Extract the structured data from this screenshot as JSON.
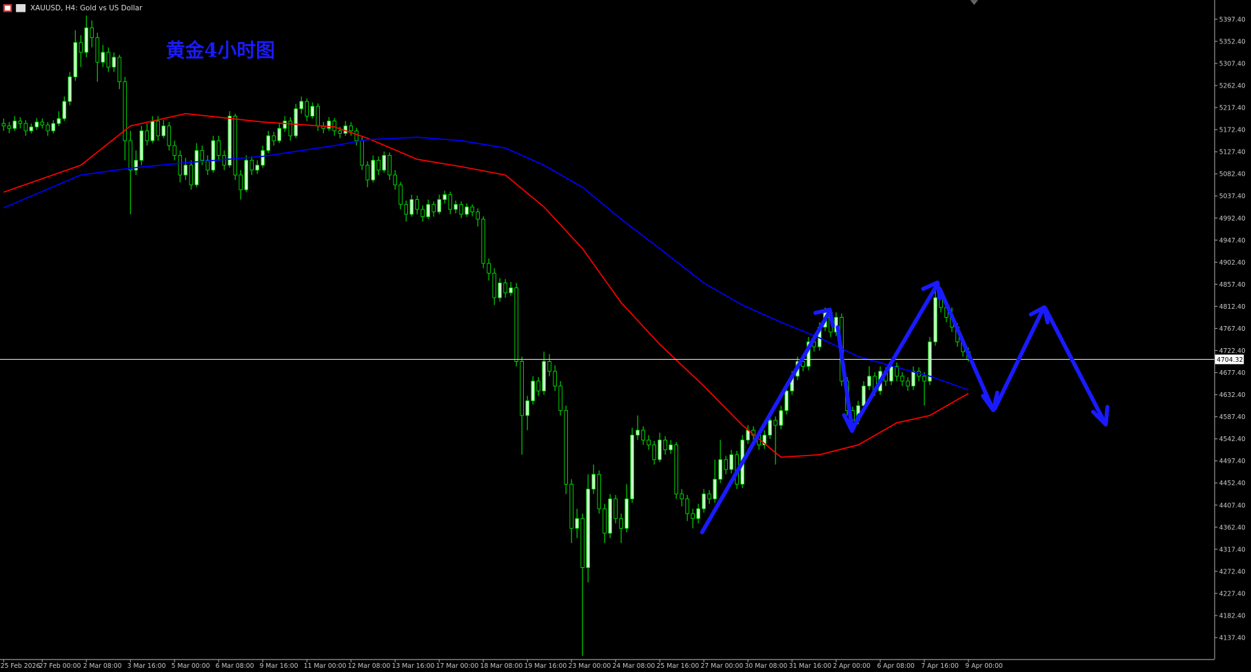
{
  "chart_data": {
    "type": "candlestick",
    "title": "XAUUSD, H4:  Gold vs US Dollar",
    "annotation": "黄金4小时图",
    "up_color": "#ccffcc",
    "down_color": "#000000",
    "wick_color": "#00e000",
    "ylim": [
      4093.5,
      5436.4
    ],
    "yticks": [
      {
        "value": 5397.4,
        "label": "5397.40"
      },
      {
        "value": 5352.4,
        "label": "5352.40"
      },
      {
        "value": 5307.4,
        "label": "5307.40"
      },
      {
        "value": 5262.4,
        "label": "5262.40"
      },
      {
        "value": 5217.4,
        "label": "5217.40"
      },
      {
        "value": 5172.4,
        "label": "5172.40"
      },
      {
        "value": 5127.4,
        "label": "5127.40"
      },
      {
        "value": 5082.4,
        "label": "5082.40"
      },
      {
        "value": 5037.4,
        "label": "5037.40"
      },
      {
        "value": 4992.4,
        "label": "4992.40"
      },
      {
        "value": 4947.4,
        "label": "4947.40"
      },
      {
        "value": 4902.4,
        "label": "4902.40"
      },
      {
        "value": 4857.4,
        "label": "4857.40"
      },
      {
        "value": 4812.4,
        "label": "4812.40"
      },
      {
        "value": 4767.4,
        "label": "4767.40"
      },
      {
        "value": 4722.4,
        "label": "4722.40"
      },
      {
        "value": 4677.4,
        "label": "4677.40"
      },
      {
        "value": 4632.4,
        "label": "4632.40"
      },
      {
        "value": 4587.4,
        "label": "4587.40"
      },
      {
        "value": 4542.4,
        "label": "4542.40"
      },
      {
        "value": 4497.4,
        "label": "4497.40"
      },
      {
        "value": 4452.4,
        "label": "4452.40"
      },
      {
        "value": 4407.4,
        "label": "4407.40"
      },
      {
        "value": 4362.4,
        "label": "4362.40"
      },
      {
        "value": 4317.4,
        "label": "4317.40"
      },
      {
        "value": 4272.4,
        "label": "4272.40"
      },
      {
        "value": 4227.4,
        "label": "4227.40"
      },
      {
        "value": 4182.4,
        "label": "4182.40"
      },
      {
        "value": 4137.4,
        "label": "4137.40"
      }
    ],
    "current_price": {
      "value": 4704.32,
      "label": "4704.32"
    },
    "categories": [
      "25 Feb 2026",
      null,
      null,
      null,
      null,
      null,
      null,
      "27 Feb 00:00",
      null,
      null,
      null,
      null,
      null,
      null,
      null,
      "2 Mar 08:00",
      null,
      null,
      null,
      null,
      null,
      null,
      null,
      "3 Mar 16:00",
      null,
      null,
      null,
      null,
      null,
      null,
      null,
      "5 Mar 00:00",
      null,
      null,
      null,
      null,
      null,
      null,
      null,
      "6 Mar 08:00",
      null,
      null,
      null,
      null,
      null,
      null,
      null,
      "9 Mar 16:00",
      null,
      null,
      null,
      null,
      null,
      null,
      null,
      "11 Mar 00:00",
      null,
      null,
      null,
      null,
      null,
      null,
      null,
      "12 Mar 08:00",
      null,
      null,
      null,
      null,
      null,
      null,
      null,
      "13 Mar 16:00",
      null,
      null,
      null,
      null,
      null,
      null,
      null,
      "17 Mar 00:00",
      null,
      null,
      null,
      null,
      null,
      null,
      null,
      "18 Mar 08:00",
      null,
      null,
      null,
      null,
      null,
      null,
      null,
      "19 Mar 16:00",
      null,
      null,
      null,
      null,
      null,
      null,
      null,
      "23 Mar 00:00",
      null,
      null,
      null,
      null,
      null,
      null,
      null,
      "24 Mar 08:00",
      null,
      null,
      null,
      null,
      null,
      null,
      null,
      "25 Mar 16:00",
      null,
      null,
      null,
      null,
      null,
      null,
      null,
      "27 Mar 00:00",
      null,
      null,
      null,
      null,
      null,
      null,
      null,
      "30 Mar 08:00",
      null,
      null,
      null,
      null,
      null,
      null,
      null,
      "31 Mar 16:00",
      null,
      null,
      null,
      null,
      null,
      null,
      null,
      "2 Apr 00:00",
      null,
      null,
      null,
      null,
      null,
      null,
      null,
      "6 Apr 08:00",
      null,
      null,
      null,
      null,
      null,
      null,
      null,
      "7 Apr 16:00",
      null,
      null,
      null,
      null,
      null,
      null,
      null,
      "9 Apr 00:00"
    ],
    "ohlc": [
      [
        5185,
        5195,
        5170,
        5180
      ],
      [
        5180,
        5188,
        5165,
        5175
      ],
      [
        5175,
        5200,
        5170,
        5190
      ],
      [
        5190,
        5198,
        5175,
        5185
      ],
      [
        5185,
        5192,
        5160,
        5170
      ],
      [
        5170,
        5185,
        5165,
        5178
      ],
      [
        5178,
        5196,
        5172,
        5188
      ],
      [
        5188,
        5195,
        5175,
        5182
      ],
      [
        5182,
        5188,
        5160,
        5170
      ],
      [
        5170,
        5192,
        5165,
        5185
      ],
      [
        5185,
        5210,
        5180,
        5195
      ],
      [
        5195,
        5240,
        5190,
        5230
      ],
      [
        5230,
        5290,
        5222,
        5280
      ],
      [
        5280,
        5375,
        5272,
        5350
      ],
      [
        5350,
        5365,
        5300,
        5330
      ],
      [
        5330,
        5405,
        5320,
        5380
      ],
      [
        5380,
        5395,
        5340,
        5360
      ],
      [
        5360,
        5370,
        5270,
        5310
      ],
      [
        5310,
        5345,
        5300,
        5330
      ],
      [
        5330,
        5340,
        5290,
        5300
      ],
      [
        5300,
        5330,
        5290,
        5320
      ],
      [
        5320,
        5325,
        5255,
        5270
      ],
      [
        5270,
        5280,
        5110,
        5150
      ],
      [
        5150,
        5170,
        5000,
        5090
      ],
      [
        5090,
        5130,
        5080,
        5110
      ],
      [
        5110,
        5180,
        5100,
        5170
      ],
      [
        5170,
        5185,
        5140,
        5150
      ],
      [
        5150,
        5200,
        5145,
        5190
      ],
      [
        5190,
        5200,
        5150,
        5160
      ],
      [
        5160,
        5192,
        5155,
        5180
      ],
      [
        5180,
        5188,
        5130,
        5140
      ],
      [
        5140,
        5150,
        5110,
        5120
      ],
      [
        5120,
        5130,
        5065,
        5080
      ],
      [
        5080,
        5115,
        5070,
        5100
      ],
      [
        5100,
        5110,
        5050,
        5060
      ],
      [
        5060,
        5145,
        5055,
        5130
      ],
      [
        5130,
        5140,
        5100,
        5110
      ],
      [
        5110,
        5120,
        5080,
        5090
      ],
      [
        5090,
        5160,
        5085,
        5150
      ],
      [
        5150,
        5160,
        5110,
        5120
      ],
      [
        5120,
        5130,
        5090,
        5100
      ],
      [
        5100,
        5210,
        5095,
        5200
      ],
      [
        5200,
        5205,
        5070,
        5080
      ],
      [
        5080,
        5090,
        5030,
        5050
      ],
      [
        5050,
        5120,
        5045,
        5110
      ],
      [
        5110,
        5118,
        5080,
        5090
      ],
      [
        5090,
        5110,
        5082,
        5100
      ],
      [
        5100,
        5140,
        5095,
        5130
      ],
      [
        5130,
        5170,
        5125,
        5160
      ],
      [
        5160,
        5168,
        5140,
        5150
      ],
      [
        5150,
        5185,
        5145,
        5175
      ],
      [
        5175,
        5200,
        5168,
        5190
      ],
      [
        5190,
        5198,
        5150,
        5160
      ],
      [
        5160,
        5225,
        5155,
        5215
      ],
      [
        5215,
        5240,
        5205,
        5230
      ],
      [
        5230,
        5236,
        5190,
        5200
      ],
      [
        5200,
        5228,
        5195,
        5220
      ],
      [
        5220,
        5226,
        5170,
        5180
      ],
      [
        5180,
        5188,
        5165,
        5175
      ],
      [
        5175,
        5198,
        5170,
        5190
      ],
      [
        5190,
        5196,
        5160,
        5170
      ],
      [
        5170,
        5178,
        5155,
        5165
      ],
      [
        5165,
        5190,
        5160,
        5180
      ],
      [
        5180,
        5188,
        5160,
        5170
      ],
      [
        5170,
        5176,
        5140,
        5150
      ],
      [
        5150,
        5158,
        5090,
        5100
      ],
      [
        5100,
        5108,
        5055,
        5070
      ],
      [
        5070,
        5120,
        5065,
        5110
      ],
      [
        5110,
        5118,
        5080,
        5090
      ],
      [
        5090,
        5128,
        5085,
        5120
      ],
      [
        5120,
        5126,
        5070,
        5080
      ],
      [
        5080,
        5090,
        5050,
        5060
      ],
      [
        5060,
        5066,
        5010,
        5020
      ],
      [
        5020,
        5028,
        4985,
        5000
      ],
      [
        5000,
        5040,
        4995,
        5030
      ],
      [
        5030,
        5038,
        5000,
        5010
      ],
      [
        5010,
        5018,
        4985,
        4995
      ],
      [
        4995,
        5030,
        4990,
        5020
      ],
      [
        5020,
        5026,
        4995,
        5005
      ],
      [
        5005,
        5040,
        5000,
        5030
      ],
      [
        5030,
        5048,
        5022,
        5040
      ],
      [
        5040,
        5046,
        5000,
        5010
      ],
      [
        5010,
        5028,
        5002,
        5020
      ],
      [
        5020,
        5026,
        4992,
        5000
      ],
      [
        5000,
        5022,
        4995,
        5015
      ],
      [
        5015,
        5020,
        4996,
        5005
      ],
      [
        5005,
        5012,
        4975,
        4990
      ],
      [
        4990,
        4996,
        4890,
        4900
      ],
      [
        4900,
        4910,
        4865,
        4880
      ],
      [
        4880,
        4890,
        4815,
        4830
      ],
      [
        4830,
        4870,
        4822,
        4860
      ],
      [
        4860,
        4868,
        4830,
        4840
      ],
      [
        4840,
        4862,
        4834,
        4850
      ],
      [
        4850,
        4860,
        4690,
        4700
      ],
      [
        4700,
        4710,
        4510,
        4590
      ],
      [
        4590,
        4630,
        4560,
        4620
      ],
      [
        4620,
        4670,
        4612,
        4660
      ],
      [
        4660,
        4668,
        4630,
        4640
      ],
      [
        4640,
        4720,
        4632,
        4700
      ],
      [
        4700,
        4715,
        4670,
        4680
      ],
      [
        4680,
        4692,
        4640,
        4650
      ],
      [
        4650,
        4660,
        4590,
        4600
      ],
      [
        4600,
        4610,
        4430,
        4450
      ],
      [
        4450,
        4460,
        4330,
        4360
      ],
      [
        4360,
        4400,
        4340,
        4380
      ],
      [
        4380,
        4390,
        4100,
        4280
      ],
      [
        4280,
        4470,
        4250,
        4440
      ],
      [
        4440,
        4490,
        4430,
        4470
      ],
      [
        4470,
        4478,
        4390,
        4400
      ],
      [
        4400,
        4410,
        4330,
        4350
      ],
      [
        4350,
        4430,
        4340,
        4420
      ],
      [
        4420,
        4428,
        4370,
        4380
      ],
      [
        4380,
        4390,
        4330,
        4360
      ],
      [
        4360,
        4450,
        4352,
        4420
      ],
      [
        4420,
        4565,
        4412,
        4550
      ],
      [
        4550,
        4590,
        4540,
        4560
      ],
      [
        4560,
        4568,
        4530,
        4540
      ],
      [
        4540,
        4550,
        4520,
        4530
      ],
      [
        4530,
        4538,
        4490,
        4500
      ],
      [
        4500,
        4555,
        4495,
        4540
      ],
      [
        4540,
        4548,
        4510,
        4520
      ],
      [
        4520,
        4540,
        4512,
        4530
      ],
      [
        4530,
        4536,
        4420,
        4430
      ],
      [
        4430,
        4440,
        4405,
        4420
      ],
      [
        4420,
        4428,
        4375,
        4390
      ],
      [
        4390,
        4400,
        4360,
        4380
      ],
      [
        4380,
        4410,
        4370,
        4400
      ],
      [
        4400,
        4440,
        4392,
        4430
      ],
      [
        4430,
        4438,
        4410,
        4420
      ],
      [
        4420,
        4500,
        4412,
        4460
      ],
      [
        4460,
        4540,
        4452,
        4500
      ],
      [
        4500,
        4508,
        4470,
        4480
      ],
      [
        4480,
        4520,
        4472,
        4510
      ],
      [
        4510,
        4518,
        4440,
        4450
      ],
      [
        4450,
        4550,
        4442,
        4540
      ],
      [
        4540,
        4570,
        4532,
        4560
      ],
      [
        4560,
        4568,
        4540,
        4550
      ],
      [
        4550,
        4558,
        4520,
        4530
      ],
      [
        4530,
        4560,
        4522,
        4550
      ],
      [
        4550,
        4590,
        4542,
        4580
      ],
      [
        4580,
        4588,
        4490,
        4570
      ],
      [
        4570,
        4610,
        4562,
        4600
      ],
      [
        4600,
        4650,
        4592,
        4640
      ],
      [
        4640,
        4680,
        4632,
        4670
      ],
      [
        4670,
        4710,
        4662,
        4700
      ],
      [
        4700,
        4708,
        4680,
        4690
      ],
      [
        4690,
        4750,
        4682,
        4740
      ],
      [
        4740,
        4748,
        4720,
        4730
      ],
      [
        4730,
        4780,
        4722,
        4770
      ],
      [
        4770,
        4810,
        4762,
        4800
      ],
      [
        4800,
        4808,
        4750,
        4760
      ],
      [
        4760,
        4800,
        4752,
        4790
      ],
      [
        4790,
        4798,
        4650,
        4660
      ],
      [
        4660,
        4668,
        4590,
        4600
      ],
      [
        4600,
        4608,
        4560,
        4580
      ],
      [
        4580,
        4620,
        4572,
        4610
      ],
      [
        4610,
        4660,
        4602,
        4650
      ],
      [
        4650,
        4690,
        4642,
        4670
      ],
      [
        4670,
        4678,
        4630,
        4640
      ],
      [
        4640,
        4690,
        4632,
        4680
      ],
      [
        4680,
        4688,
        4650,
        4660
      ],
      [
        4660,
        4700,
        4652,
        4690
      ],
      [
        4690,
        4698,
        4660,
        4670
      ],
      [
        4670,
        4678,
        4650,
        4660
      ],
      [
        4660,
        4668,
        4640,
        4650
      ],
      [
        4650,
        4690,
        4642,
        4680
      ],
      [
        4680,
        4688,
        4660,
        4670
      ],
      [
        4670,
        4678,
        4610,
        4660
      ],
      [
        4660,
        4750,
        4652,
        4740
      ],
      [
        4740,
        4860,
        4732,
        4830
      ],
      [
        4830,
        4838,
        4800,
        4810
      ],
      [
        4810,
        4818,
        4780,
        4790
      ],
      [
        4790,
        4810,
        4760,
        4770
      ],
      [
        4770,
        4778,
        4730,
        4740
      ],
      [
        4740,
        4748,
        4710,
        4720
      ],
      [
        4720,
        4728,
        4700,
        4704
      ]
    ],
    "ma": [
      {
        "color": "#ff0000",
        "x": [
          0,
          14,
          23,
          33,
          47,
          60,
          66,
          75,
          83,
          91,
          98,
          105,
          112,
          119,
          127,
          134,
          141,
          148,
          155,
          162,
          168,
          175
        ],
        "values": [
          5045,
          5100,
          5180,
          5205,
          5188,
          5178,
          5155,
          5112,
          5097,
          5080,
          5015,
          4930,
          4820,
          4735,
          4650,
          4570,
          4505,
          4510,
          4530,
          4575,
          4590,
          4635
        ]
      },
      {
        "color": "#0000ff",
        "x": [
          0,
          14,
          23,
          33,
          47,
          60,
          66,
          75,
          83,
          91,
          98,
          105,
          112,
          119,
          127,
          134,
          141,
          148,
          155,
          162,
          168,
          175
        ],
        "values": [
          5013,
          5080,
          5094,
          5105,
          5118,
          5140,
          5152,
          5157,
          5150,
          5135,
          5100,
          5055,
          4990,
          4930,
          4860,
          4815,
          4780,
          4748,
          4710,
          4688,
          4670,
          4642
        ]
      }
    ]
  }
}
